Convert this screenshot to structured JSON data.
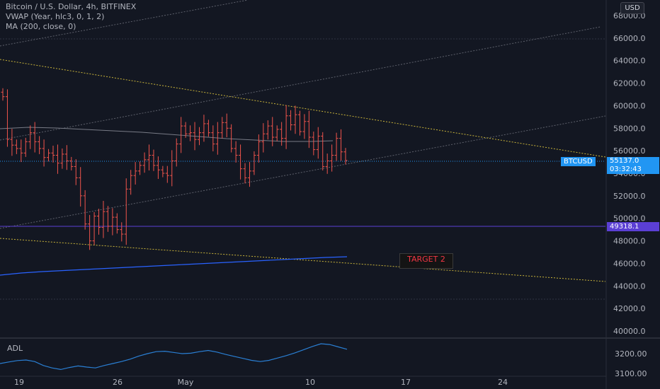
{
  "legend": {
    "symbol": "Bitcoin / U.S. Dollar, 4h, BITFINEX",
    "vwap": "VWAP (Year, hlc3, 0, 1, 2)",
    "ma": "MA (200, close, 0)"
  },
  "currency_button": "USD",
  "annotation": "TARGET 2",
  "indicator_label": "ADL",
  "price_axis": [
    "68000.0",
    "66000.0",
    "64000.0",
    "62000.0",
    "60000.0",
    "58000.0",
    "56000.0",
    "54000.0",
    "52000.0",
    "50000.0",
    "48000.0",
    "46000.0",
    "44000.0",
    "42000.0",
    "40000.0"
  ],
  "adl_axis": [
    "3200.00",
    "3100.00"
  ],
  "time_axis": [
    "19",
    "26",
    "May",
    "10",
    "17",
    "24"
  ],
  "last_price": {
    "symbol": "BTCUSD",
    "value": "55137.0",
    "countdown": "03:32:43",
    "color": "#2196f3"
  },
  "vwap_tag": {
    "value": "49318.1",
    "color": "#5b3fd4"
  },
  "colors": {
    "background": "#131722",
    "candles": "#f0544c",
    "ma_line": "#787b86",
    "vwap_line": "#2962ff",
    "trend_yellow": "#c8b33a",
    "adl_line": "#2a7fd4"
  },
  "chart_data": {
    "type": "candlestick",
    "ylim": [
      39500,
      69500
    ],
    "adl_ylim": [
      3080,
      3260
    ],
    "candles_close": [
      60800,
      57000,
      56500,
      56200,
      55800,
      56800,
      57600,
      56800,
      56200,
      55400,
      55800,
      55600,
      54900,
      55700,
      55100,
      54600,
      53600,
      52000,
      49500,
      48000,
      50200,
      49200,
      50600,
      49300,
      50100,
      49000,
      48600,
      52600,
      53800,
      54200,
      54700,
      55200,
      55600,
      54700,
      54300,
      54000,
      53800,
      55100,
      56600,
      58200,
      57500,
      57600,
      57000,
      57600,
      58400,
      57600,
      56600,
      57600,
      58500,
      58000,
      56200,
      55600,
      54400,
      53600,
      54200,
      55600,
      56800,
      57500,
      58200,
      57200,
      57900,
      57100,
      59100,
      58300,
      59200,
      57700,
      58600,
      57200,
      56100,
      57300,
      54600,
      55100,
      55600,
      57100,
      55900,
      55137
    ],
    "adl": [
      3150,
      3158,
      3165,
      3168,
      3160,
      3140,
      3128,
      3120,
      3130,
      3138,
      3132,
      3128,
      3140,
      3150,
      3160,
      3172,
      3188,
      3200,
      3210,
      3212,
      3206,
      3200,
      3202,
      3210,
      3216,
      3208,
      3196,
      3186,
      3176,
      3166,
      3160,
      3166,
      3178,
      3190,
      3204,
      3220,
      3236,
      3250,
      3246,
      3234,
      3222
    ]
  }
}
